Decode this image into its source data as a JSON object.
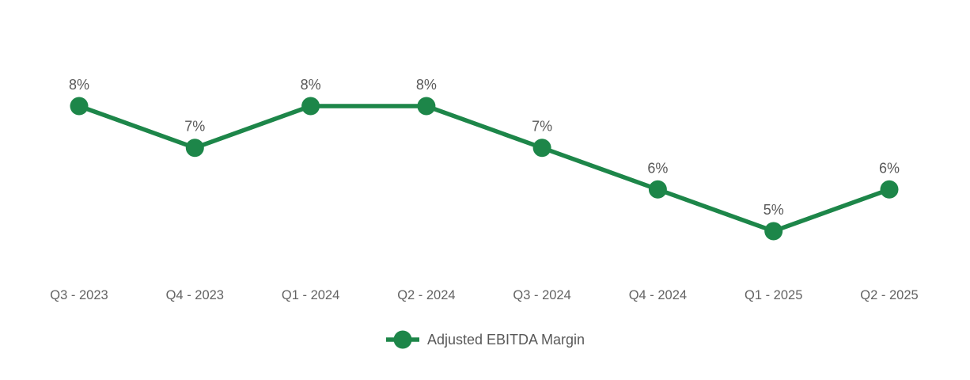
{
  "chart_data": {
    "type": "line",
    "title": "",
    "categories": [
      "Q3 - 2023",
      "Q4 - 2023",
      "Q1 - 2024",
      "Q2 - 2024",
      "Q3 - 2024",
      "Q4 - 2024",
      "Q1 - 2025",
      "Q2 - 2025"
    ],
    "series": [
      {
        "name": "Adjusted EBITDA Margin",
        "values": [
          8,
          7,
          8,
          8,
          7,
          6,
          5,
          6
        ],
        "labels": [
          "8%",
          "7%",
          "8%",
          "8%",
          "7%",
          "6%",
          "5%",
          "6%"
        ],
        "color": "#1d8649"
      }
    ],
    "xlabel": "",
    "ylabel": "",
    "ylim": [
      0,
      10
    ],
    "grid": false,
    "axes_visible": false,
    "data_labels": true,
    "legend_position": "bottom",
    "data_label_color": "#595959",
    "axis_label_color": "#636363",
    "background_color": "#ffffff"
  }
}
